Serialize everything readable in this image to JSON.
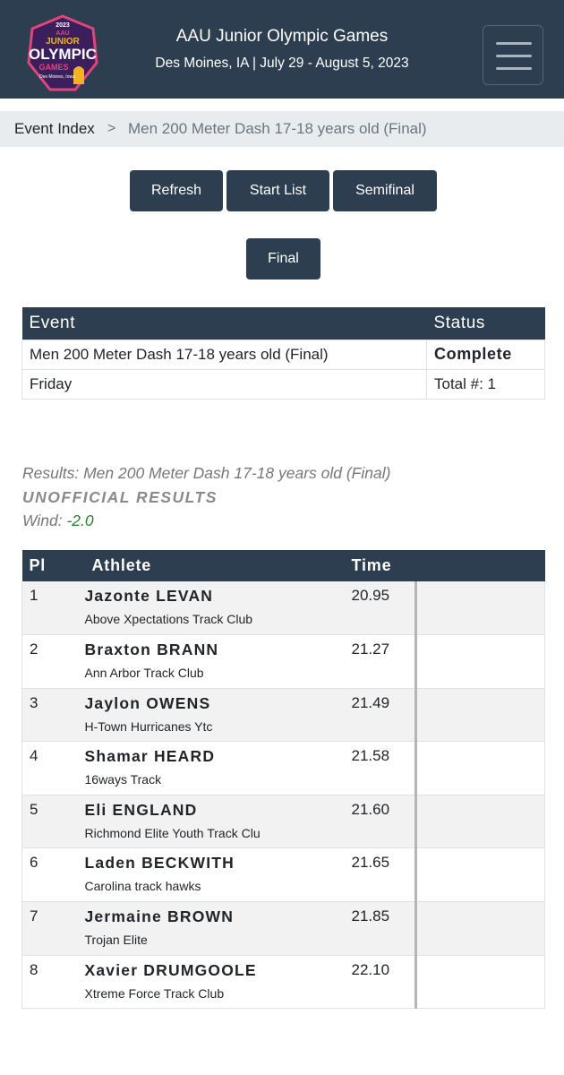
{
  "header": {
    "logo_text": [
      "2023",
      "AAU",
      "JUNIOR",
      "OLYMPIC",
      "GAMES",
      "Des Moines, Iowa"
    ],
    "meet_name": "AAU Junior Olympic Games",
    "meet_subtitle": "Des Moines, IA | July 29 - August 5, 2023",
    "menu_icon": "hamburger-icon"
  },
  "breadcrumb": {
    "root": "Event Index",
    "separator": ">",
    "current": "Men 200 Meter Dash 17-18 years old (Final)"
  },
  "buttons": {
    "refresh": "Refresh",
    "start_list": "Start List",
    "semifinal": "Semifinal",
    "final": "Final"
  },
  "event_info": {
    "headers": {
      "event": "Event",
      "status": "Status"
    },
    "event_name": "Men 200 Meter Dash 17-18 years old (Final)",
    "status": "Complete",
    "day": "Friday",
    "total": "Total #: 1"
  },
  "results_header": {
    "title": "Results: Men 200 Meter Dash 17-18 years old (Final)",
    "unofficial": "UNOFFICIAL RESULTS",
    "wind_label": "Wind: ",
    "wind_value": "-2.0"
  },
  "results_table": {
    "headers": {
      "place": "Pl",
      "athlete": "Athlete",
      "time": "Time"
    },
    "rows": [
      {
        "place": "1",
        "name": "Jazonte LEVAN",
        "team": "Above Xpectations Track Club",
        "time": "20.95"
      },
      {
        "place": "2",
        "name": "Braxton BRANN",
        "team": "Ann Arbor Track Club",
        "time": "21.27"
      },
      {
        "place": "3",
        "name": "Jaylon OWENS",
        "team": "H-Town Hurricanes Ytc",
        "time": "21.49"
      },
      {
        "place": "4",
        "name": "Shamar HEARD",
        "team": "16ways Track",
        "time": "21.58"
      },
      {
        "place": "5",
        "name": "Eli ENGLAND",
        "team": "Richmond Elite Youth Track Clu",
        "time": "21.60"
      },
      {
        "place": "6",
        "name": "Laden BECKWITH",
        "team": "Carolina track hawks",
        "time": "21.65"
      },
      {
        "place": "7",
        "name": "Jermaine BROWN",
        "team": "Trojan Elite",
        "time": "21.85"
      },
      {
        "place": "8",
        "name": "Xavier DRUMGOOLE",
        "team": "Xtreme Force Track Club",
        "time": "22.10"
      }
    ]
  }
}
